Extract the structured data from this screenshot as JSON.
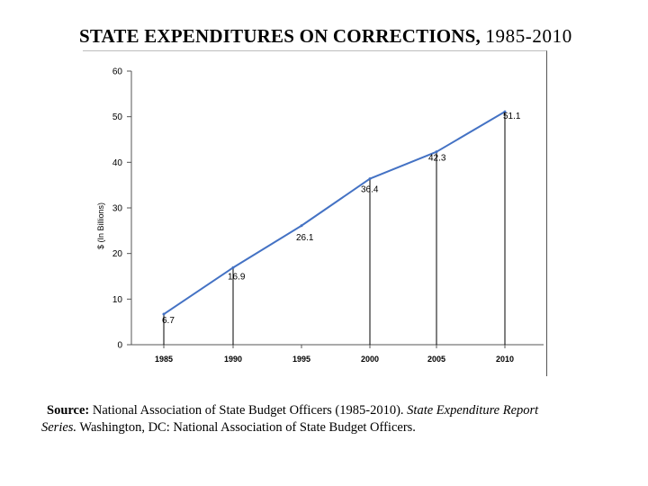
{
  "header": {
    "title": "STATE EXPENDITURES ON CORRECTIONS,",
    "years": "1985-2010"
  },
  "chart_data": {
    "type": "line",
    "title": "STATE EXPENDITURES ON CORRECTIONS, 1985-2010",
    "xlabel": "",
    "ylabel": "$ (In Billions)",
    "ylim": [
      0,
      60
    ],
    "yticks": [
      0,
      10,
      20,
      30,
      40,
      50,
      60
    ],
    "grid": false,
    "series": [
      {
        "name": "State expenditures on corrections",
        "color": "#4472c4",
        "x": [
          "1985",
          "1990",
          "1995",
          "2000",
          "2005",
          "2010"
        ],
        "values": [
          6.7,
          16.9,
          26.1,
          36.4,
          42.3,
          51.1
        ],
        "labels": [
          "6.7",
          "16.9",
          "26.1",
          "36.4",
          "42.3",
          "51.1"
        ]
      }
    ],
    "drop_lines_at": [
      "1985",
      "1990",
      "2000",
      "2005",
      "2010"
    ]
  },
  "source": {
    "label": "Source:",
    "text_1": " National Association of State Budget Officers (1985-2010). ",
    "italic_1": "State Expenditure Report",
    "italic_2": "Series.",
    "text_2": " Washington, DC: National Association of State Budget Officers."
  }
}
